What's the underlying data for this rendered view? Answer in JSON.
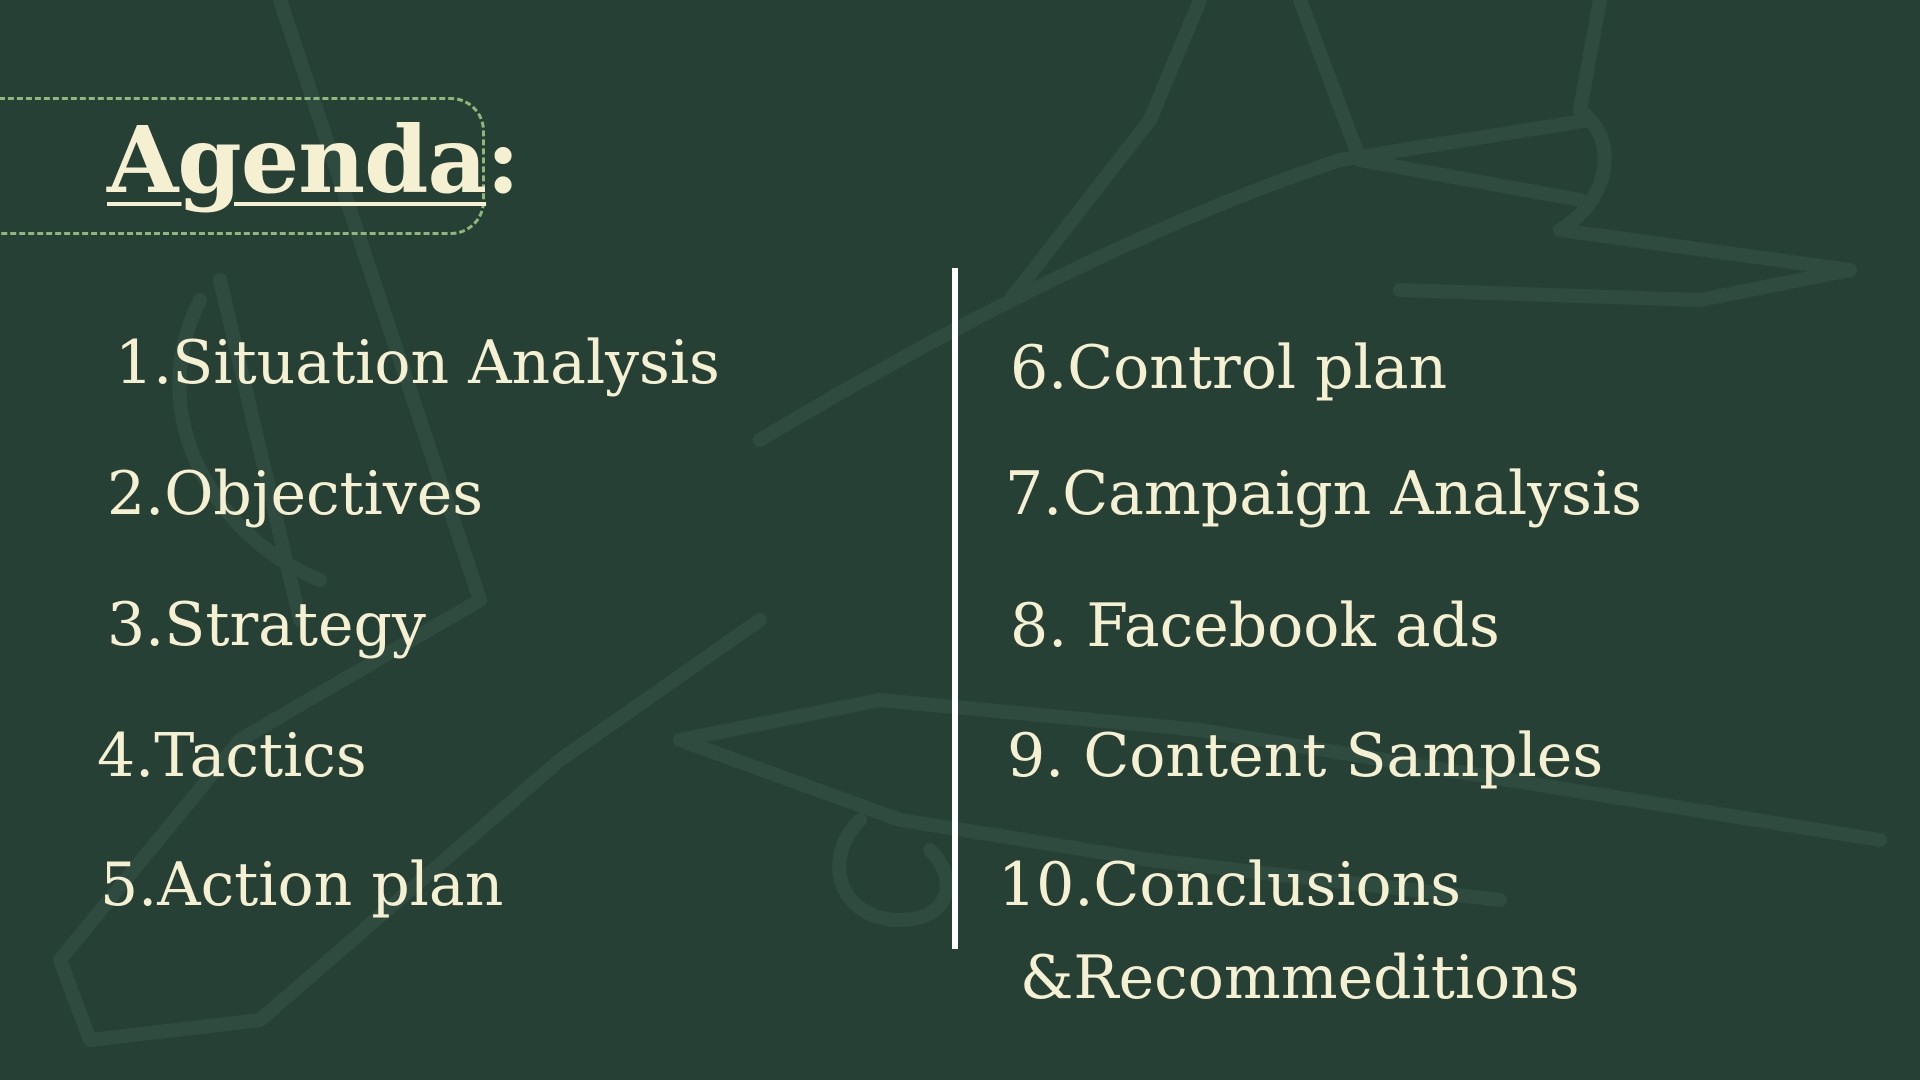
{
  "slide": {
    "title": "Agenda",
    "title_colon": ":",
    "colors": {
      "background": "#264035",
      "text": "#f6f0d2",
      "frame": "#8fb77a",
      "divider": "#ffffff"
    },
    "left_items": [
      "1.Situation Analysis",
      "2.Objectives",
      "3.Strategy",
      "4.Tactics",
      "5.Action plan"
    ],
    "right_items": [
      "6.Control plan",
      "7.Campaign Analysis",
      "8. Facebook ads",
      "9. Content Samples",
      "10.Conclusions",
      "&Recommeditions"
    ]
  }
}
